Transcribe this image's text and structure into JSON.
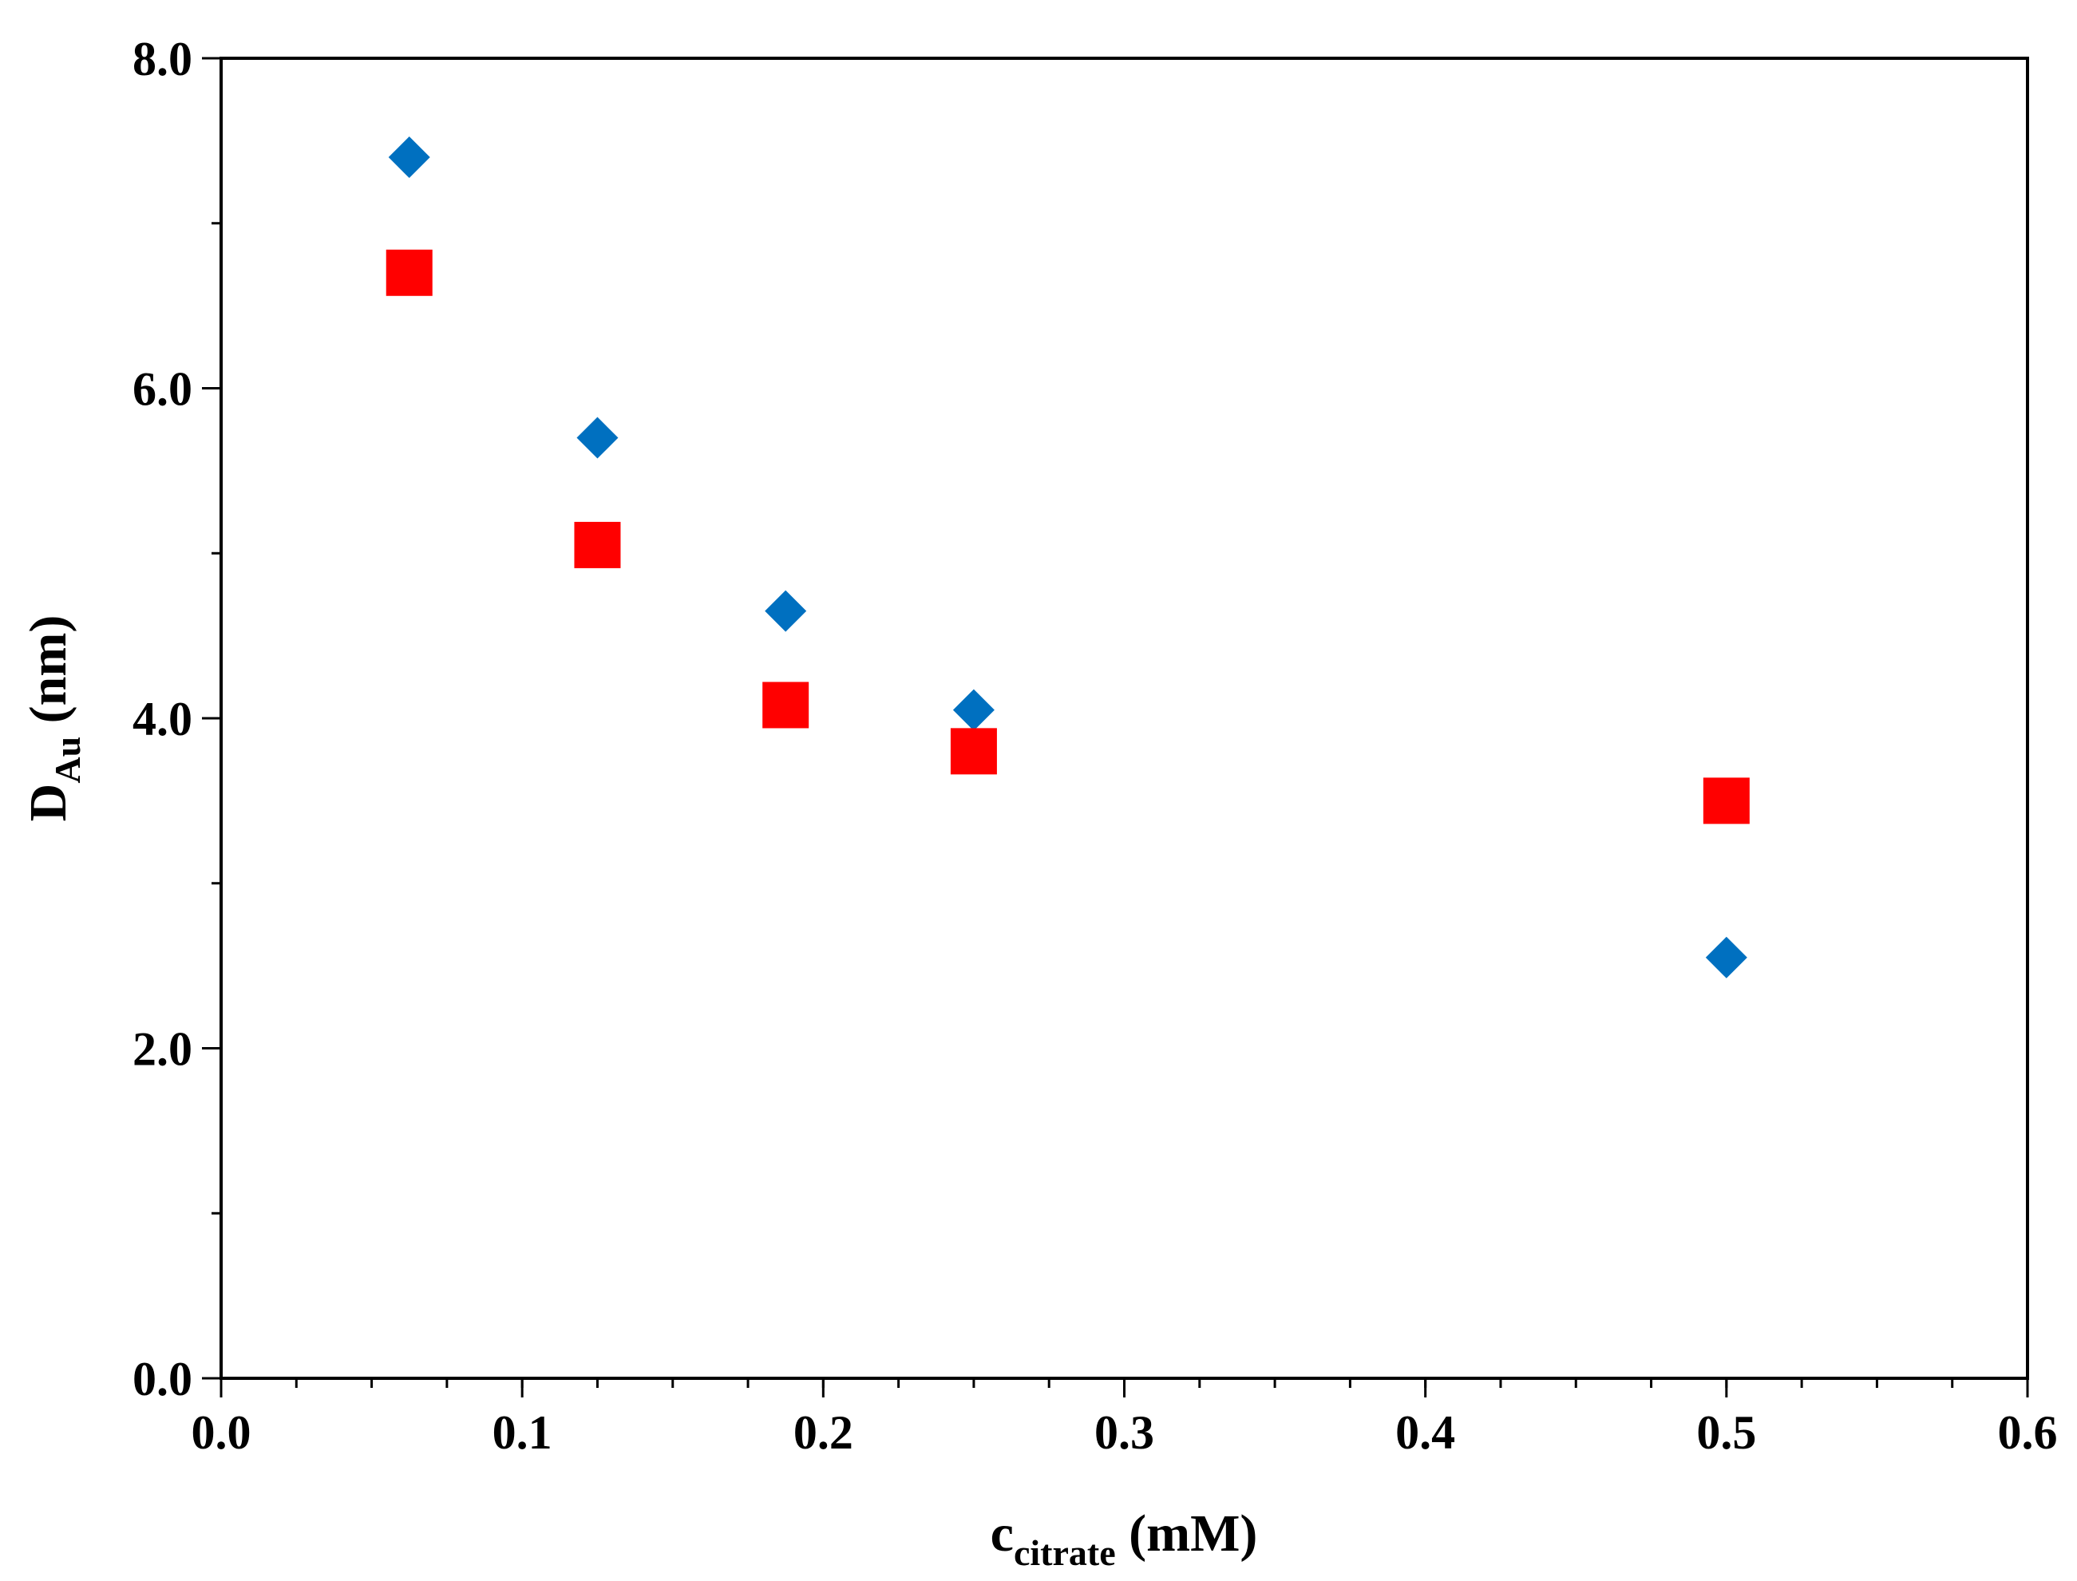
{
  "chart_data": {
    "type": "scatter",
    "title": "",
    "xlabel": {
      "main": "c",
      "sub": "citrate",
      "unit": " (mM)"
    },
    "ylabel": {
      "main": "D",
      "sub": "Au",
      "unit": " (nm)"
    },
    "xlim": [
      0,
      0.6
    ],
    "ylim": [
      0,
      8
    ],
    "x_major_ticks": [
      0.0,
      0.1,
      0.2,
      0.3,
      0.4,
      0.5,
      0.6
    ],
    "x_tick_labels": [
      "0.0",
      "0.1",
      "0.2",
      "0.3",
      "0.4",
      "0.5",
      "0.6"
    ],
    "x_minor_step": 0.025,
    "y_major_ticks": [
      0,
      2,
      4,
      6,
      8
    ],
    "y_tick_labels": [
      "0.0",
      "2.0",
      "4.0",
      "6.0",
      "8.0"
    ],
    "y_minor_step": 1,
    "grid": false,
    "legend": "none",
    "series": [
      {
        "name": "series-diamond",
        "marker": "diamond",
        "color": "#0070C0",
        "points": [
          {
            "x": 0.0625,
            "y": 7.4
          },
          {
            "x": 0.125,
            "y": 5.7
          },
          {
            "x": 0.1875,
            "y": 4.65
          },
          {
            "x": 0.25,
            "y": 4.05
          },
          {
            "x": 0.5,
            "y": 2.55
          }
        ]
      },
      {
        "name": "series-square",
        "marker": "square",
        "color": "#FF0000",
        "points": [
          {
            "x": 0.0625,
            "y": 6.7
          },
          {
            "x": 0.125,
            "y": 5.05
          },
          {
            "x": 0.1875,
            "y": 4.08
          },
          {
            "x": 0.25,
            "y": 3.8
          },
          {
            "x": 0.5,
            "y": 3.5
          }
        ]
      }
    ]
  }
}
